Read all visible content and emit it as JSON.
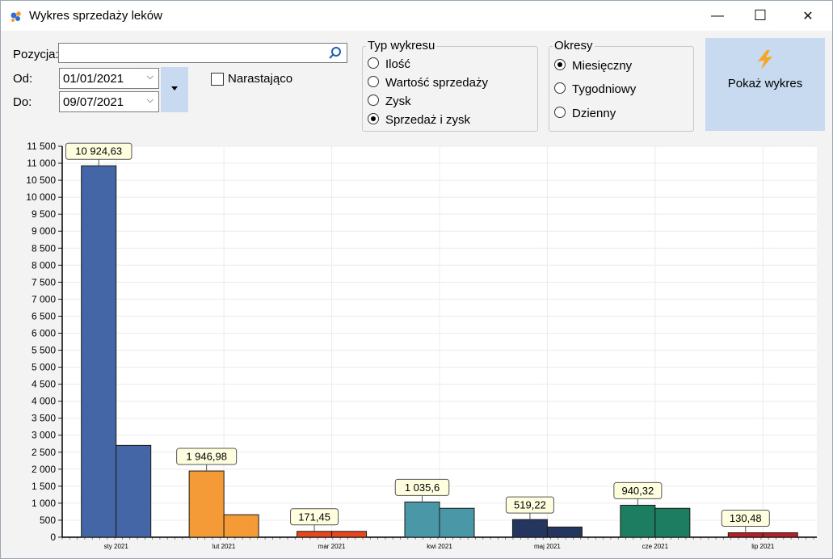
{
  "window": {
    "title": "Wykres sprzedaży leków"
  },
  "window_controls": {
    "minimize": "—",
    "maximize": "☐",
    "close": "✕"
  },
  "form": {
    "position_label": "Pozycja:",
    "position_value": "",
    "from_label": "Od:",
    "from_value": "01/01/2021",
    "to_label": "Do:",
    "to_value": "09/07/2021",
    "cumulative_label": "Narastająco",
    "cumulative_checked": false
  },
  "chart_type_group": {
    "title": "Typ wykresu",
    "options": [
      "Ilość",
      "Wartość sprzedaży",
      "Zysk",
      "Sprzedaż i zysk"
    ],
    "selected_index": 3
  },
  "period_group": {
    "title": "Okresy",
    "options": [
      "Miesięczny",
      "Tygodniowy",
      "Dzienny"
    ],
    "selected_index": 0
  },
  "show_button": {
    "label": "Pokaż wykres",
    "icon": "lightning-icon"
  },
  "colors": {
    "accent": "#c7daf0",
    "bolt": "#f6a623"
  },
  "chart_data": {
    "type": "bar",
    "categories": [
      "sty 2021",
      "lut 2021",
      "mar 2021",
      "kwi 2021",
      "maj 2021",
      "cze 2021",
      "lip 2021"
    ],
    "series": [
      {
        "values": [
          10924.63,
          1946.98,
          171.45,
          1035.6,
          519.22,
          940.32,
          130.48
        ]
      },
      {
        "values": [
          2700,
          660,
          171.45,
          850,
          300,
          850,
          130.48
        ]
      }
    ],
    "data_labels": [
      "10 924,63",
      "1 946,98",
      "171,45",
      "1 035,6",
      "519,22",
      "940,32",
      "130,48"
    ],
    "category_colors": [
      [
        "#4465a6",
        "#4465a6"
      ],
      [
        "#f49b37",
        "#f49b37"
      ],
      [
        "#e8461d",
        "#e8461d"
      ],
      [
        "#4a97a8",
        "#4a97a8"
      ],
      [
        "#24365e",
        "#24365e"
      ],
      [
        "#1d7d60",
        "#1d7d60"
      ],
      [
        "#b81f24",
        "#b81f24"
      ]
    ],
    "ylim": [
      0,
      11500
    ],
    "ytick_step": 500,
    "ytick_labels": [
      "0",
      "500",
      "1 000",
      "1 500",
      "2 000",
      "2 500",
      "3 000",
      "3 500",
      "4 000",
      "4 500",
      "5 000",
      "5 500",
      "6 000",
      "6 500",
      "7 000",
      "7 500",
      "8 000",
      "8 500",
      "9 000",
      "9 500",
      "10 000",
      "10 500",
      "11 000",
      "11 500"
    ],
    "grid": true,
    "legend": "none"
  }
}
